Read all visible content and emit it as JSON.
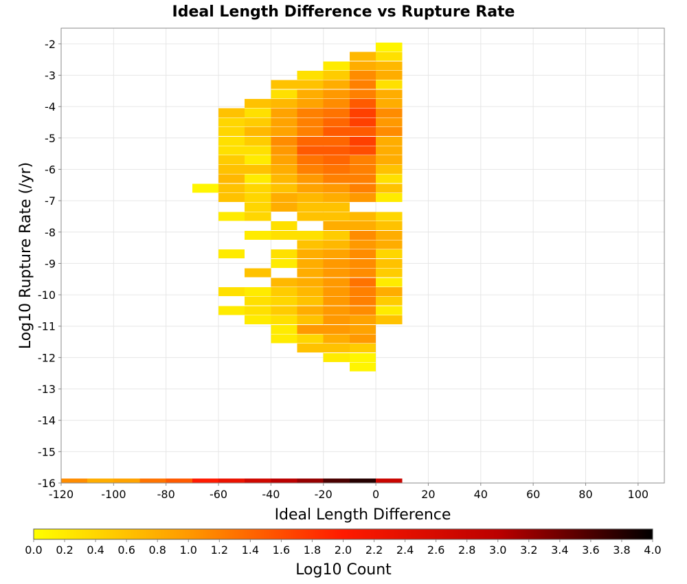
{
  "chart_data": {
    "type": "heatmap",
    "title": "Ideal Length Difference vs Rupture Rate",
    "xlabel": "Ideal Length Difference",
    "ylabel": "Log10 Rupture Rate (/yr)",
    "colorbar_label": "Log10 Count",
    "xlim": [
      -120,
      110
    ],
    "ylim": [
      -16,
      -1.5
    ],
    "x_ticks": [
      -120,
      -100,
      -80,
      -60,
      -40,
      -20,
      0,
      20,
      40,
      60,
      80,
      100
    ],
    "y_ticks": [
      -2,
      -3,
      -4,
      -5,
      -6,
      -7,
      -8,
      -9,
      -10,
      -11,
      -12,
      -13,
      -14,
      -15,
      -16
    ],
    "colorbar_ticks": [
      "0.0",
      "0.2",
      "0.4",
      "0.6",
      "0.8",
      "1.0",
      "1.2",
      "1.4",
      "1.6",
      "1.8",
      "2.0",
      "2.2",
      "2.4",
      "2.6",
      "2.8",
      "3.0",
      "3.2",
      "3.4",
      "3.6",
      "3.8",
      "4.0"
    ],
    "colorbar_range": [
      0,
      4
    ],
    "colormap": [
      "#ffff00",
      "#ff9900",
      "#ff1a00",
      "#bb0000",
      "#000000"
    ],
    "grid": true,
    "x_bin_width": 10,
    "y_bin_height": 0.2857,
    "cells": [
      [
        0,
        -2.1,
        0.1
      ],
      [
        0,
        -2.4,
        0.3
      ],
      [
        0,
        -2.7,
        0.7
      ],
      [
        0,
        -3.0,
        0.8
      ],
      [
        0,
        -3.3,
        0.3
      ],
      [
        0,
        -3.6,
        0.8
      ],
      [
        0,
        -3.9,
        0.8
      ],
      [
        0,
        -4.2,
        1.1
      ],
      [
        0,
        -4.5,
        1.0
      ],
      [
        0,
        -4.8,
        1.1
      ],
      [
        0,
        -5.1,
        0.8
      ],
      [
        0,
        -5.4,
        0.8
      ],
      [
        0,
        -5.7,
        0.8
      ],
      [
        0,
        -6.0,
        0.6
      ],
      [
        0,
        -6.3,
        0.3
      ],
      [
        0,
        -6.6,
        0.6
      ],
      [
        0,
        -6.9,
        0.2
      ],
      [
        0,
        -7.5,
        0.4
      ],
      [
        0,
        -7.8,
        0.6
      ],
      [
        0,
        -8.1,
        0.8
      ],
      [
        0,
        -8.4,
        0.8
      ],
      [
        0,
        -8.7,
        0.4
      ],
      [
        0,
        -9.0,
        0.6
      ],
      [
        0,
        -9.3,
        0.5
      ],
      [
        0,
        -9.6,
        0.2
      ],
      [
        0,
        -9.9,
        0.8
      ],
      [
        0,
        -10.2,
        0.5
      ],
      [
        0,
        -10.5,
        0.2
      ],
      [
        0,
        -10.8,
        0.6
      ],
      [
        -10,
        -2.4,
        0.7
      ],
      [
        -10,
        -2.7,
        0.8
      ],
      [
        -10,
        -3.0,
        1.1
      ],
      [
        -10,
        -3.3,
        1.2
      ],
      [
        -10,
        -3.6,
        1.2
      ],
      [
        -10,
        -3.9,
        1.5
      ],
      [
        -10,
        -4.2,
        1.7
      ],
      [
        -10,
        -4.5,
        1.7
      ],
      [
        -10,
        -4.8,
        1.5
      ],
      [
        -10,
        -5.1,
        1.7
      ],
      [
        -10,
        -5.4,
        1.6
      ],
      [
        -10,
        -5.7,
        1.2
      ],
      [
        -10,
        -6.0,
        1.2
      ],
      [
        -10,
        -6.3,
        1.2
      ],
      [
        -10,
        -6.6,
        1.2
      ],
      [
        -10,
        -6.9,
        1.0
      ],
      [
        -10,
        -7.5,
        0.7
      ],
      [
        -10,
        -7.8,
        0.8
      ],
      [
        -10,
        -8.1,
        1.1
      ],
      [
        -10,
        -8.4,
        1.0
      ],
      [
        -10,
        -8.7,
        1.1
      ],
      [
        -10,
        -9.0,
        1.1
      ],
      [
        -10,
        -9.3,
        1.1
      ],
      [
        -10,
        -9.6,
        1.3
      ],
      [
        -10,
        -9.9,
        1.2
      ],
      [
        -10,
        -10.2,
        1.2
      ],
      [
        -10,
        -10.5,
        1.1
      ],
      [
        -10,
        -10.8,
        0.9
      ],
      [
        -10,
        -11.1,
        0.9
      ],
      [
        -10,
        -11.4,
        1.0
      ],
      [
        -10,
        -11.7,
        0.5
      ],
      [
        -10,
        -12.0,
        0.1
      ],
      [
        -10,
        -12.3,
        0.1
      ],
      [
        -20,
        -2.7,
        0.2
      ],
      [
        -20,
        -3.0,
        0.5
      ],
      [
        -20,
        -3.3,
        0.8
      ],
      [
        -20,
        -3.6,
        1.0
      ],
      [
        -20,
        -3.9,
        1.1
      ],
      [
        -20,
        -4.2,
        1.3
      ],
      [
        -20,
        -4.5,
        1.4
      ],
      [
        -20,
        -4.8,
        1.5
      ],
      [
        -20,
        -5.1,
        1.4
      ],
      [
        -20,
        -5.4,
        1.5
      ],
      [
        -20,
        -5.7,
        1.4
      ],
      [
        -20,
        -6.0,
        1.3
      ],
      [
        -20,
        -6.3,
        1.2
      ],
      [
        -20,
        -6.6,
        1.0
      ],
      [
        -20,
        -6.9,
        0.8
      ],
      [
        -20,
        -7.2,
        0.6
      ],
      [
        -20,
        -7.5,
        0.6
      ],
      [
        -20,
        -7.8,
        0.8
      ],
      [
        -20,
        -8.1,
        0.5
      ],
      [
        -20,
        -8.4,
        0.7
      ],
      [
        -20,
        -8.7,
        0.9
      ],
      [
        -20,
        -9.0,
        1.0
      ],
      [
        -20,
        -9.3,
        1.0
      ],
      [
        -20,
        -9.6,
        1.0
      ],
      [
        -20,
        -9.9,
        1.0
      ],
      [
        -20,
        -10.2,
        1.0
      ],
      [
        -20,
        -10.5,
        1.0
      ],
      [
        -20,
        -10.8,
        1.0
      ],
      [
        -20,
        -11.1,
        1.0
      ],
      [
        -20,
        -11.4,
        0.8
      ],
      [
        -20,
        -11.7,
        0.6
      ],
      [
        -20,
        -12.0,
        0.2
      ],
      [
        -30,
        -3.0,
        0.3
      ],
      [
        -30,
        -3.3,
        0.6
      ],
      [
        -30,
        -3.6,
        0.8
      ],
      [
        -30,
        -3.9,
        0.9
      ],
      [
        -30,
        -4.2,
        1.2
      ],
      [
        -30,
        -4.5,
        1.2
      ],
      [
        -30,
        -4.8,
        1.2
      ],
      [
        -30,
        -5.1,
        1.4
      ],
      [
        -30,
        -5.4,
        1.5
      ],
      [
        -30,
        -5.7,
        1.3
      ],
      [
        -30,
        -6.0,
        1.2
      ],
      [
        -30,
        -6.3,
        1.0
      ],
      [
        -30,
        -6.6,
        0.9
      ],
      [
        -30,
        -6.9,
        0.7
      ],
      [
        -30,
        -7.2,
        0.6
      ],
      [
        -30,
        -7.5,
        0.6
      ],
      [
        -30,
        -8.1,
        0.3
      ],
      [
        -30,
        -8.4,
        0.6
      ],
      [
        -30,
        -8.7,
        0.8
      ],
      [
        -30,
        -9.0,
        0.8
      ],
      [
        -30,
        -9.3,
        0.8
      ],
      [
        -30,
        -9.6,
        0.8
      ],
      [
        -30,
        -9.9,
        0.7
      ],
      [
        -30,
        -10.2,
        0.6
      ],
      [
        -30,
        -10.5,
        0.8
      ],
      [
        -30,
        -10.8,
        0.6
      ],
      [
        -30,
        -11.1,
        1.0
      ],
      [
        -30,
        -11.4,
        0.4
      ],
      [
        -30,
        -11.7,
        0.6
      ],
      [
        -40,
        -3.3,
        0.6
      ],
      [
        -40,
        -3.6,
        0.3
      ],
      [
        -40,
        -3.9,
        0.7
      ],
      [
        -40,
        -4.2,
        0.9
      ],
      [
        -40,
        -4.5,
        0.9
      ],
      [
        -40,
        -4.8,
        0.9
      ],
      [
        -40,
        -5.1,
        1.1
      ],
      [
        -40,
        -5.4,
        1.0
      ],
      [
        -40,
        -5.7,
        0.9
      ],
      [
        -40,
        -6.0,
        0.8
      ],
      [
        -40,
        -6.3,
        0.7
      ],
      [
        -40,
        -6.6,
        0.6
      ],
      [
        -40,
        -6.9,
        0.8
      ],
      [
        -40,
        -7.2,
        0.8
      ],
      [
        -40,
        -7.8,
        0.3
      ],
      [
        -40,
        -8.1,
        0.3
      ],
      [
        -40,
        -8.7,
        0.3
      ],
      [
        -40,
        -9.0,
        0.2
      ],
      [
        -40,
        -9.6,
        0.7
      ],
      [
        -40,
        -9.9,
        0.5
      ],
      [
        -40,
        -10.2,
        0.4
      ],
      [
        -40,
        -10.5,
        0.5
      ],
      [
        -40,
        -10.8,
        0.3
      ],
      [
        -40,
        -11.1,
        0.2
      ],
      [
        -40,
        -11.4,
        0.2
      ],
      [
        -50,
        -3.9,
        0.6
      ],
      [
        -50,
        -4.2,
        0.3
      ],
      [
        -50,
        -4.5,
        0.5
      ],
      [
        -50,
        -4.8,
        0.7
      ],
      [
        -50,
        -5.1,
        0.5
      ],
      [
        -50,
        -5.4,
        0.3
      ],
      [
        -50,
        -5.7,
        0.2
      ],
      [
        -50,
        -6.0,
        0.6
      ],
      [
        -50,
        -6.3,
        0.2
      ],
      [
        -50,
        -6.6,
        0.4
      ],
      [
        -50,
        -6.9,
        0.4
      ],
      [
        -50,
        -7.2,
        0.4
      ],
      [
        -50,
        -7.5,
        0.4
      ],
      [
        -50,
        -8.1,
        0.2
      ],
      [
        -50,
        -9.3,
        0.6
      ],
      [
        -50,
        -9.9,
        0.2
      ],
      [
        -50,
        -10.2,
        0.3
      ],
      [
        -50,
        -10.5,
        0.3
      ],
      [
        -50,
        -10.8,
        0.2
      ],
      [
        -60,
        -4.2,
        0.6
      ],
      [
        -60,
        -4.5,
        0.4
      ],
      [
        -60,
        -4.8,
        0.4
      ],
      [
        -60,
        -5.1,
        0.3
      ],
      [
        -60,
        -5.4,
        0.3
      ],
      [
        -60,
        -5.7,
        0.5
      ],
      [
        -60,
        -6.0,
        0.6
      ],
      [
        -60,
        -6.3,
        0.7
      ],
      [
        -60,
        -6.6,
        0.6
      ],
      [
        -60,
        -6.9,
        0.6
      ],
      [
        -60,
        -7.5,
        0.2
      ],
      [
        -60,
        -8.7,
        0.2
      ],
      [
        -60,
        -9.9,
        0.3
      ],
      [
        -60,
        -10.5,
        0.2
      ],
      [
        -70,
        -6.6,
        0.1
      ]
    ],
    "bottom_row": {
      "y": -16,
      "cells": [
        [
          -120,
          1.1
        ],
        [
          -110,
          0.8
        ],
        [
          -100,
          0.9
        ],
        [
          -90,
          1.3
        ],
        [
          -80,
          1.5
        ],
        [
          -70,
          2.0
        ],
        [
          -60,
          2.3
        ],
        [
          -50,
          2.7
        ],
        [
          -40,
          3.0
        ],
        [
          -30,
          3.2
        ],
        [
          -20,
          3.6
        ],
        [
          -10,
          3.8
        ],
        [
          0,
          2.8
        ]
      ]
    }
  }
}
